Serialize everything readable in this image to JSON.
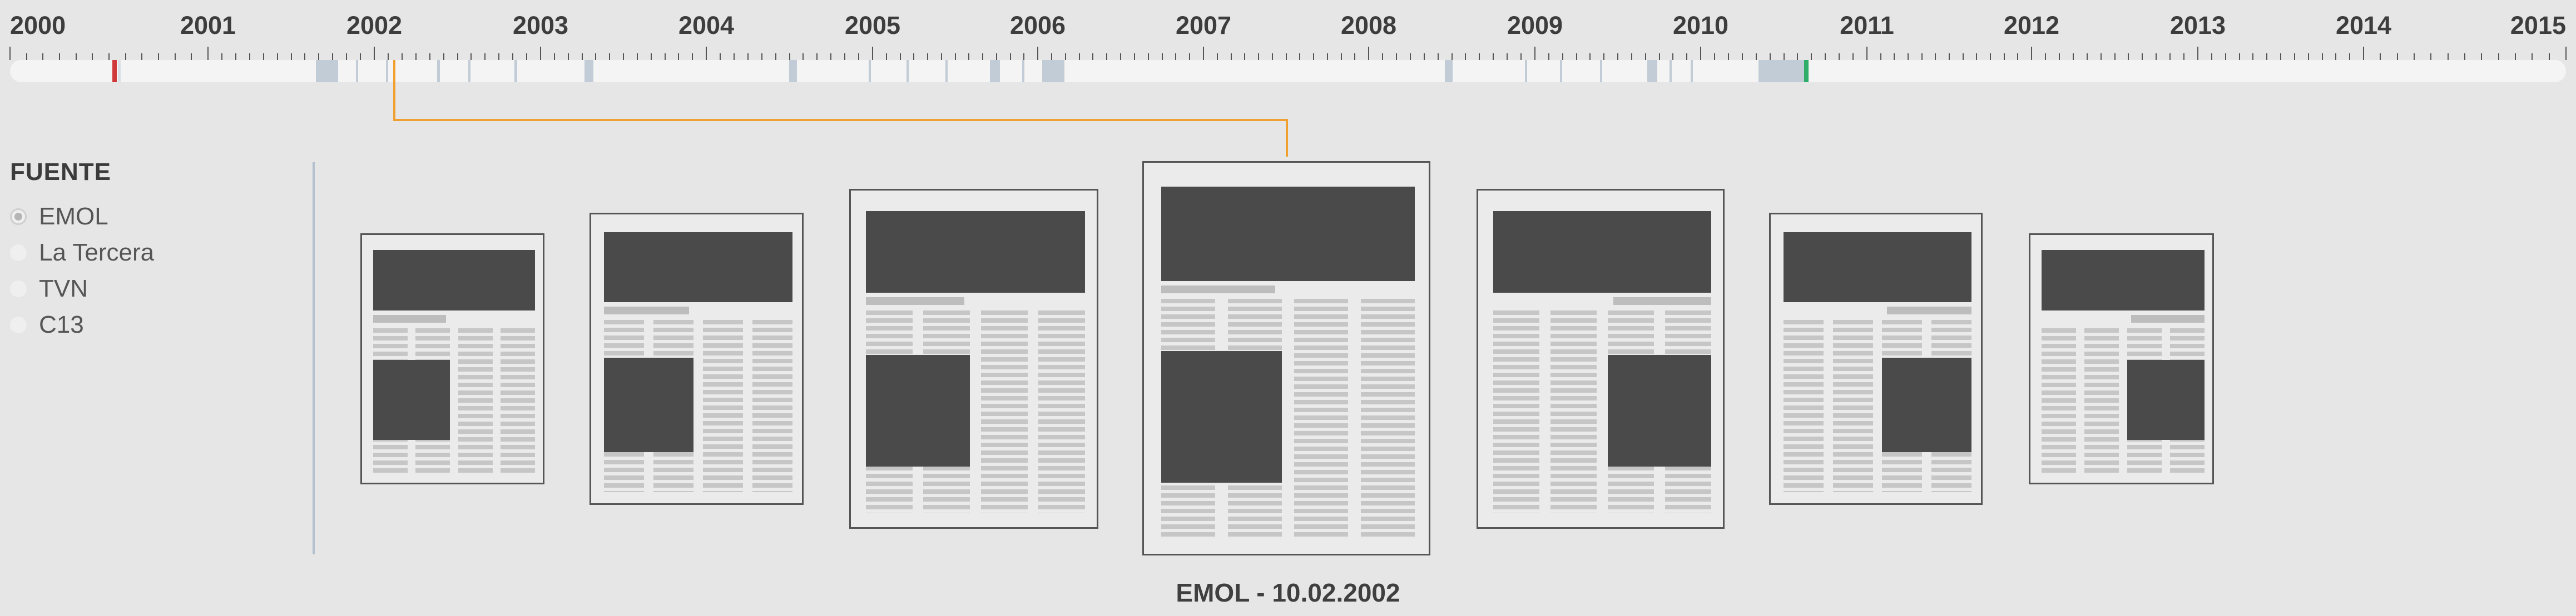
{
  "timeline": {
    "years": [
      "2000",
      "2001",
      "2002",
      "2003",
      "2004",
      "2005",
      "2006",
      "2007",
      "2008",
      "2009",
      "2010",
      "2011",
      "2012",
      "2013",
      "2014",
      "2015"
    ],
    "marker_colors": {
      "start": "#d0393a",
      "end": "#2fae6a",
      "span": "#c2ccd6"
    }
  },
  "sidebar": {
    "title": "FUENTE",
    "sources": [
      {
        "label": "EMOL",
        "selected": true
      },
      {
        "label": "La Tercera",
        "selected": false
      },
      {
        "label": "TVN",
        "selected": false
      },
      {
        "label": "C13",
        "selected": false
      }
    ]
  },
  "gallery": {
    "caption": "EMOL - 10.02.2002",
    "page_count": 7,
    "selected_index": 3
  },
  "colors": {
    "background": "#e6e6e6",
    "track": "#f4f4f4",
    "connector": "#f0a030",
    "divider": "#b3c0cf",
    "placeholder_dark": "#4a4a4a"
  }
}
